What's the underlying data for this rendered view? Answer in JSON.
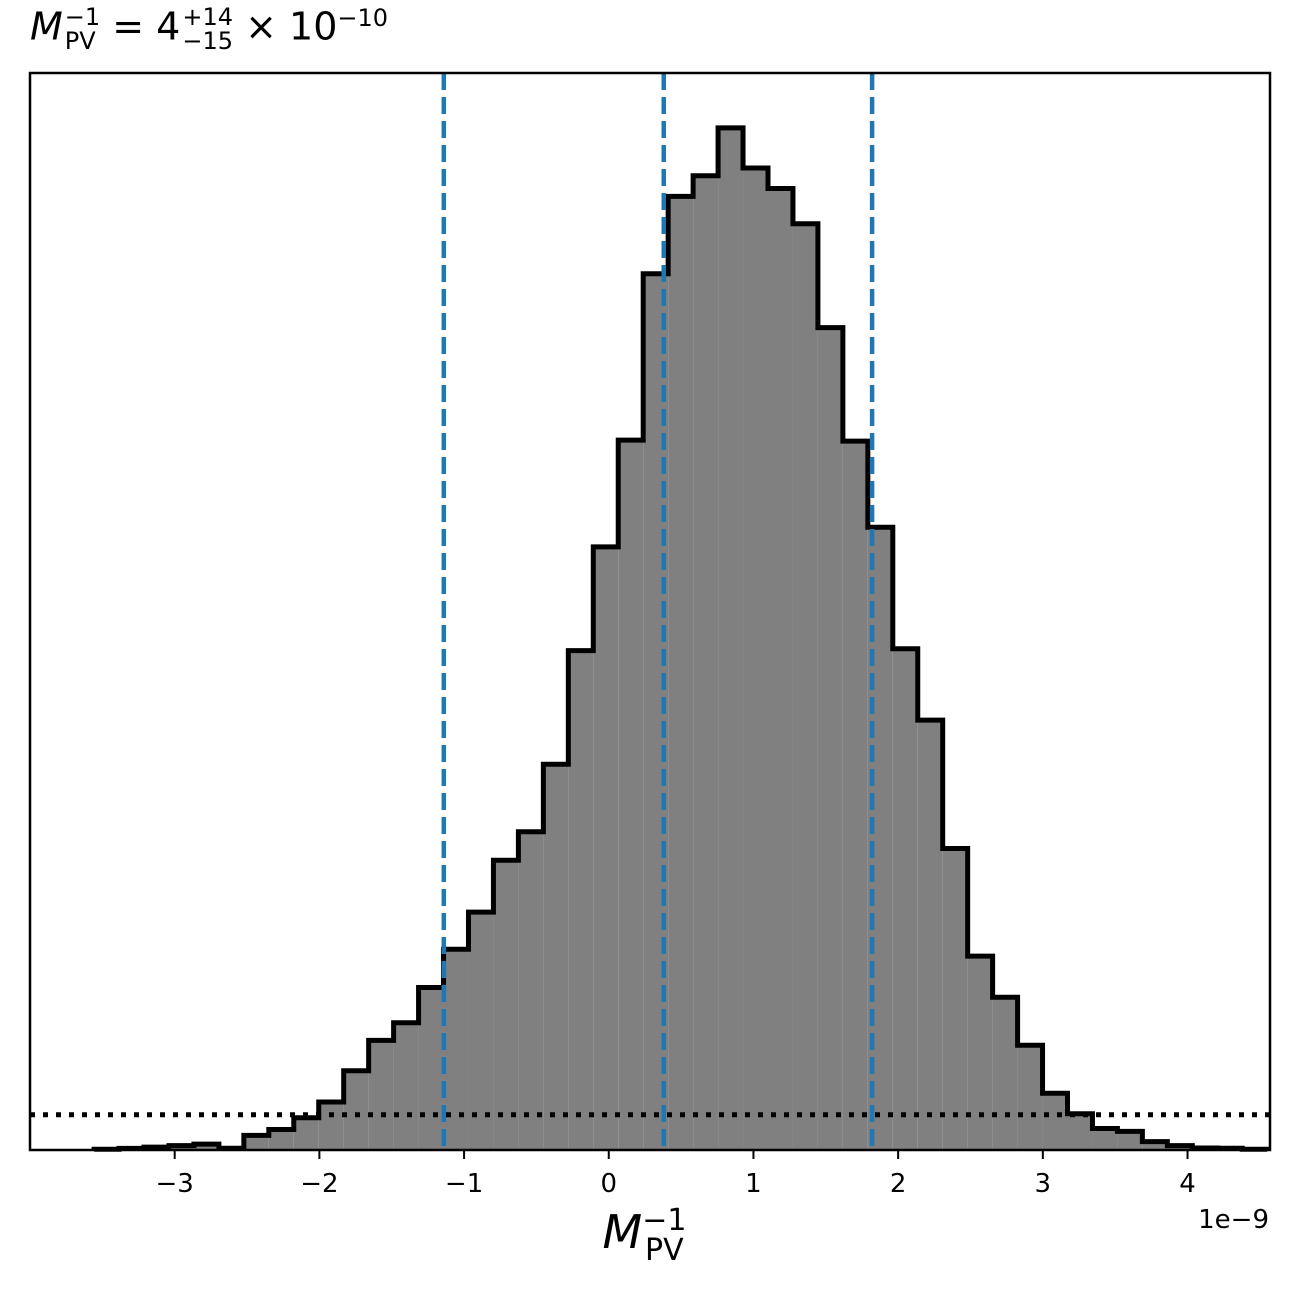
{
  "title": {
    "symbol": "M",
    "subscript": "PV",
    "superscript": "−1",
    "equals": " = 4",
    "upper": "+14",
    "lower": "−15",
    "multiplier": " × 10",
    "exponent": "−10"
  },
  "axis": {
    "xlabel_symbol": "M",
    "xlabel_sub": "PV",
    "xlabel_sup": "−1",
    "offset_text": "1e−9"
  },
  "colors": {
    "fill": "#808080",
    "edge": "#000000",
    "quantile_line": "#1f77b4",
    "reference_line": "#000000"
  },
  "chart_data": {
    "type": "bar",
    "histogram": true,
    "bin_width": 0.1725,
    "bin_edges_start": -3.557,
    "values": [
      0.08,
      0.16,
      0.3,
      0.45,
      0.6,
      0.18,
      1.5,
      2.1,
      3.3,
      4.9,
      8.1,
      11.2,
      13.0,
      16.6,
      20.5,
      24.3,
      29.6,
      32.5,
      39.4,
      51.0,
      61.6,
      72.5,
      89.5,
      97.4,
      99.5,
      104.4,
      100.3,
      98.2,
      94.6,
      84.0,
      72.4,
      63.6,
      51.2,
      43.9,
      30.8,
      19.8,
      15.6,
      10.7,
      5.8,
      3.7,
      2.2,
      1.9,
      0.85,
      0.45,
      0.21,
      0.18,
      0.08
    ],
    "ylim": [
      0,
      110
    ],
    "xlim": [
      -4.0,
      4.57
    ],
    "x_tick_values": [
      -3,
      -2,
      -1,
      0,
      1,
      2,
      3,
      4
    ],
    "x_tick_labels": [
      "−3",
      "−2",
      "−1",
      "0",
      "1",
      "2",
      "3",
      "4"
    ],
    "quantiles": [
      -1.14,
      0.38,
      1.82
    ],
    "reference_level": 3.6,
    "grid": false
  }
}
